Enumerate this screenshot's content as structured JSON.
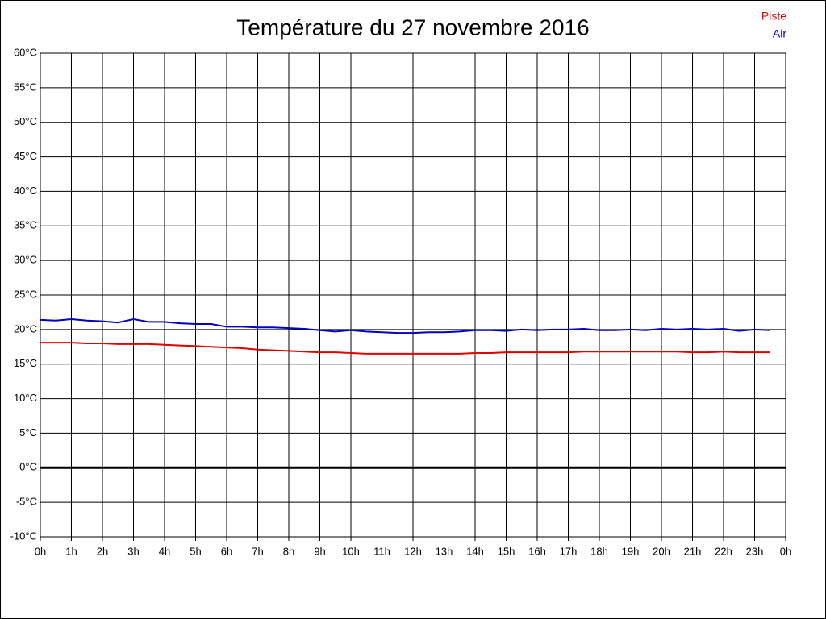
{
  "chart_data": {
    "type": "line",
    "title": "Température du 27 novembre 2016",
    "x": [
      0,
      0.5,
      1,
      1.5,
      2,
      2.5,
      3,
      3.5,
      4,
      4.5,
      5,
      5.5,
      6,
      6.5,
      7,
      7.5,
      8,
      8.5,
      9,
      9.5,
      10,
      10.5,
      11,
      11.5,
      12,
      12.5,
      13,
      13.5,
      14,
      14.5,
      15,
      15.5,
      16,
      16.5,
      17,
      17.5,
      18,
      18.5,
      19,
      19.5,
      20,
      20.5,
      21,
      21.5,
      22,
      22.5,
      23,
      23.5
    ],
    "series": [
      {
        "name": "Piste",
        "color": "#e00000",
        "values": [
          18.1,
          18.1,
          18.1,
          18.0,
          18.0,
          17.9,
          17.9,
          17.9,
          17.8,
          17.7,
          17.6,
          17.5,
          17.4,
          17.3,
          17.1,
          17.0,
          16.9,
          16.8,
          16.7,
          16.7,
          16.6,
          16.5,
          16.5,
          16.5,
          16.5,
          16.5,
          16.5,
          16.5,
          16.6,
          16.6,
          16.7,
          16.7,
          16.7,
          16.7,
          16.7,
          16.8,
          16.8,
          16.8,
          16.8,
          16.8,
          16.8,
          16.8,
          16.7,
          16.7,
          16.8,
          16.7,
          16.7,
          16.7
        ]
      },
      {
        "name": "Air",
        "color": "#0000c0",
        "values": [
          21.4,
          21.3,
          21.5,
          21.3,
          21.2,
          21.0,
          21.5,
          21.1,
          21.1,
          20.9,
          20.8,
          20.8,
          20.4,
          20.4,
          20.3,
          20.3,
          20.2,
          20.1,
          19.9,
          19.7,
          19.9,
          19.7,
          19.6,
          19.5,
          19.5,
          19.6,
          19.6,
          19.7,
          19.9,
          19.9,
          19.8,
          20.0,
          19.9,
          20.0,
          20.0,
          20.1,
          19.9,
          19.9,
          20.0,
          19.9,
          20.1,
          20.0,
          20.1,
          20.0,
          20.1,
          19.8,
          20.0,
          19.9
        ]
      }
    ],
    "xlim": [
      0,
      24
    ],
    "xticks": [
      {
        "value": 0,
        "label": "0h"
      },
      {
        "value": 1,
        "label": "1h"
      },
      {
        "value": 2,
        "label": "2h"
      },
      {
        "value": 3,
        "label": "3h"
      },
      {
        "value": 4,
        "label": "4h"
      },
      {
        "value": 5,
        "label": "5h"
      },
      {
        "value": 6,
        "label": "6h"
      },
      {
        "value": 7,
        "label": "7h"
      },
      {
        "value": 8,
        "label": "8h"
      },
      {
        "value": 9,
        "label": "9h"
      },
      {
        "value": 10,
        "label": "10h"
      },
      {
        "value": 11,
        "label": "11h"
      },
      {
        "value": 12,
        "label": "12h"
      },
      {
        "value": 13,
        "label": "13h"
      },
      {
        "value": 14,
        "label": "14h"
      },
      {
        "value": 15,
        "label": "15h"
      },
      {
        "value": 16,
        "label": "16h"
      },
      {
        "value": 17,
        "label": "17h"
      },
      {
        "value": 18,
        "label": "18h"
      },
      {
        "value": 19,
        "label": "19h"
      },
      {
        "value": 20,
        "label": "20h"
      },
      {
        "value": 21,
        "label": "21h"
      },
      {
        "value": 22,
        "label": "22h"
      },
      {
        "value": 23,
        "label": "23h"
      },
      {
        "value": 24,
        "label": "0h"
      }
    ],
    "ylim": [
      -10,
      60
    ],
    "yticks": [
      {
        "value": -10,
        "label": "-10°C"
      },
      {
        "value": -5,
        "label": "-5°C"
      },
      {
        "value": 0,
        "label": "0°C"
      },
      {
        "value": 5,
        "label": "5°C"
      },
      {
        "value": 10,
        "label": "10°C"
      },
      {
        "value": 15,
        "label": "15°C"
      },
      {
        "value": 20,
        "label": "20°C"
      },
      {
        "value": 25,
        "label": "25°C"
      },
      {
        "value": 30,
        "label": "30°C"
      },
      {
        "value": 35,
        "label": "35°C"
      },
      {
        "value": 40,
        "label": "40°C"
      },
      {
        "value": 45,
        "label": "45°C"
      },
      {
        "value": 50,
        "label": "50°C"
      },
      {
        "value": 55,
        "label": "55°C"
      },
      {
        "value": 60,
        "label": "60°C"
      }
    ],
    "grid": true,
    "zero_line": true,
    "legend": "top-right"
  }
}
